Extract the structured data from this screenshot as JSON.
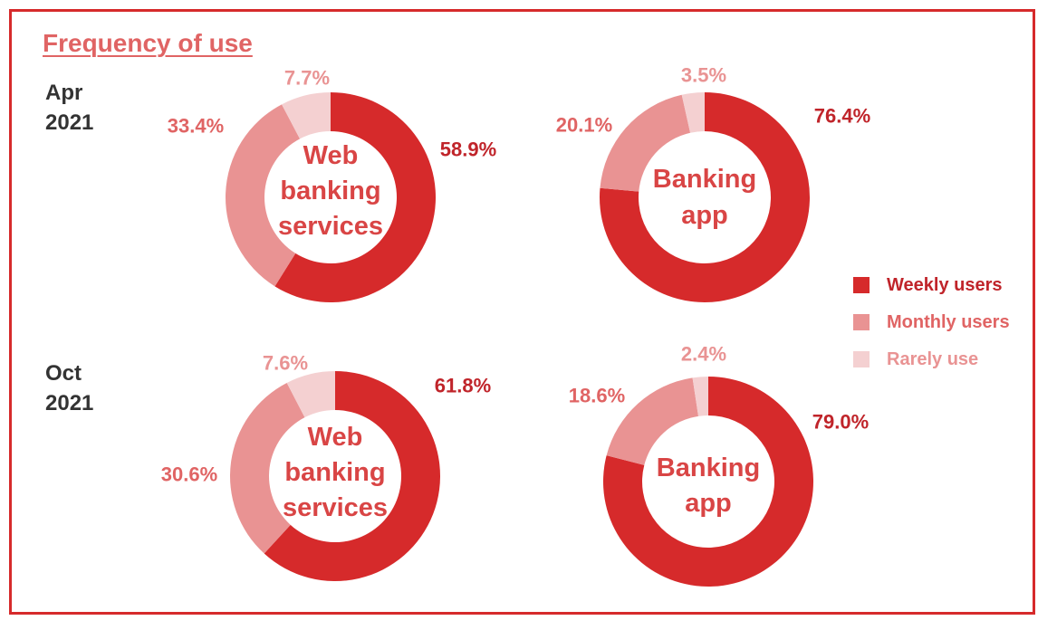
{
  "title": "Frequency of use",
  "periods": [
    {
      "line1": "Apr",
      "line2": "2021"
    },
    {
      "line1": "Oct",
      "line2": "2021"
    }
  ],
  "legend": [
    {
      "label": "Weekly users",
      "color": "#d62a2b"
    },
    {
      "label": "Monthly users",
      "color": "#e99393"
    },
    {
      "label": "Rarely use",
      "color": "#f4d0d1"
    }
  ],
  "colors": {
    "frame": "#d62a2b",
    "center_label": "#d94545",
    "weekly_label": "#c0242a",
    "monthly_label": "#e06464",
    "rarely_label": "#e99393"
  },
  "chart_data": [
    {
      "type": "pie",
      "period": "Apr 2021",
      "center_label": [
        "Web",
        "banking",
        "services"
      ],
      "categories": [
        "Weekly users",
        "Monthly users",
        "Rarely use"
      ],
      "values": [
        58.9,
        33.4,
        7.7
      ],
      "value_labels": [
        "58.9%",
        "33.4%",
        "7.7%"
      ]
    },
    {
      "type": "pie",
      "period": "Apr 2021",
      "center_label": [
        "Banking",
        "app"
      ],
      "categories": [
        "Weekly users",
        "Monthly users",
        "Rarely use"
      ],
      "values": [
        76.4,
        20.1,
        3.5
      ],
      "value_labels": [
        "76.4%",
        "20.1%",
        "3.5%"
      ]
    },
    {
      "type": "pie",
      "period": "Oct 2021",
      "center_label": [
        "Web",
        "banking",
        "services"
      ],
      "categories": [
        "Weekly users",
        "Monthly users",
        "Rarely use"
      ],
      "values": [
        61.8,
        30.6,
        7.6
      ],
      "value_labels": [
        "61.8%",
        "30.6%",
        "7.6%"
      ]
    },
    {
      "type": "pie",
      "period": "Oct 2021",
      "center_label": [
        "Banking",
        "app"
      ],
      "categories": [
        "Weekly users",
        "Monthly users",
        "Rarely use"
      ],
      "values": [
        79.0,
        18.6,
        2.4
      ],
      "value_labels": [
        "79.0%",
        "18.6%",
        "2.4%"
      ]
    }
  ]
}
